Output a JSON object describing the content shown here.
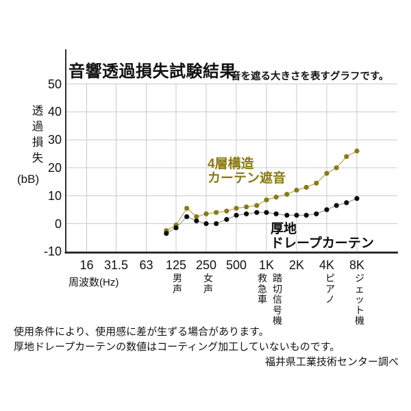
{
  "header": {
    "title": "音響透過損失試験結果",
    "subtitle": "音を遮る大きさを表すグラフです。"
  },
  "chart_data": {
    "type": "line",
    "title": "音響透過損失試験結果",
    "subtitle": "音を遮る大きさを表すグラフです。",
    "xlabel": "周波数(Hz)",
    "ylabel": "透過損失",
    "ylabel_unit": "(bB)",
    "x_scale": "log2",
    "grid": true,
    "ylim": [
      -10,
      50
    ],
    "yticks": [
      50,
      40,
      30,
      20,
      10,
      0,
      -10
    ],
    "xtick_labels": [
      "16",
      "31.5",
      "63",
      "125",
      "250",
      "500",
      "1K",
      "2K",
      "4K",
      "8K"
    ],
    "xtick_freqs": [
      16,
      31.5,
      63,
      125,
      250,
      500,
      1000,
      2000,
      4000,
      8000
    ],
    "x": [
      100,
      125,
      160,
      200,
      250,
      315,
      400,
      500,
      630,
      800,
      1000,
      1250,
      1600,
      2000,
      2500,
      3150,
      4000,
      5000,
      6300,
      8000
    ],
    "series": [
      {
        "name": "4層構造カーテン遮音",
        "color": "#8a7a12",
        "line_color": "#b3a654",
        "values": [
          -2.5,
          -0.5,
          5.5,
          2.5,
          3.5,
          4,
          4.5,
          5.5,
          6,
          6.5,
          8.5,
          9.5,
          10.5,
          12,
          13,
          14.5,
          18,
          20,
          24,
          26
        ]
      },
      {
        "name": "厚地ドレープカーテン",
        "color": "#0d0d0d",
        "line_color": "#999999",
        "values": [
          -3.5,
          -1.5,
          2.5,
          1,
          0,
          0,
          1.5,
          3,
          3.5,
          4,
          4,
          3.5,
          3,
          3,
          3,
          3.5,
          5,
          6.5,
          7.5,
          9
        ]
      }
    ],
    "legend": {
      "series1_lines": [
        "4層構造",
        "カーテン遮音"
      ],
      "series2_lines": [
        "厚地",
        "ドレープカーテン"
      ]
    },
    "annotations": [
      {
        "label": "男声",
        "x": 259
      },
      {
        "label": "女声",
        "x": 304
      },
      {
        "label": "救急車",
        "x": 383
      },
      {
        "label": "踏切信号機",
        "x": 405
      },
      {
        "label": "ピアノ",
        "x": 482
      },
      {
        "label": "ジェット機",
        "x": 525
      }
    ]
  },
  "notes": {
    "line1": "使用条件により、使用感に差が生ずる場合があります。",
    "line2": "厚地ドレープカーテンの数値はコーティング加工していないものです。",
    "credit": "福井県工業技術センター調べ"
  }
}
